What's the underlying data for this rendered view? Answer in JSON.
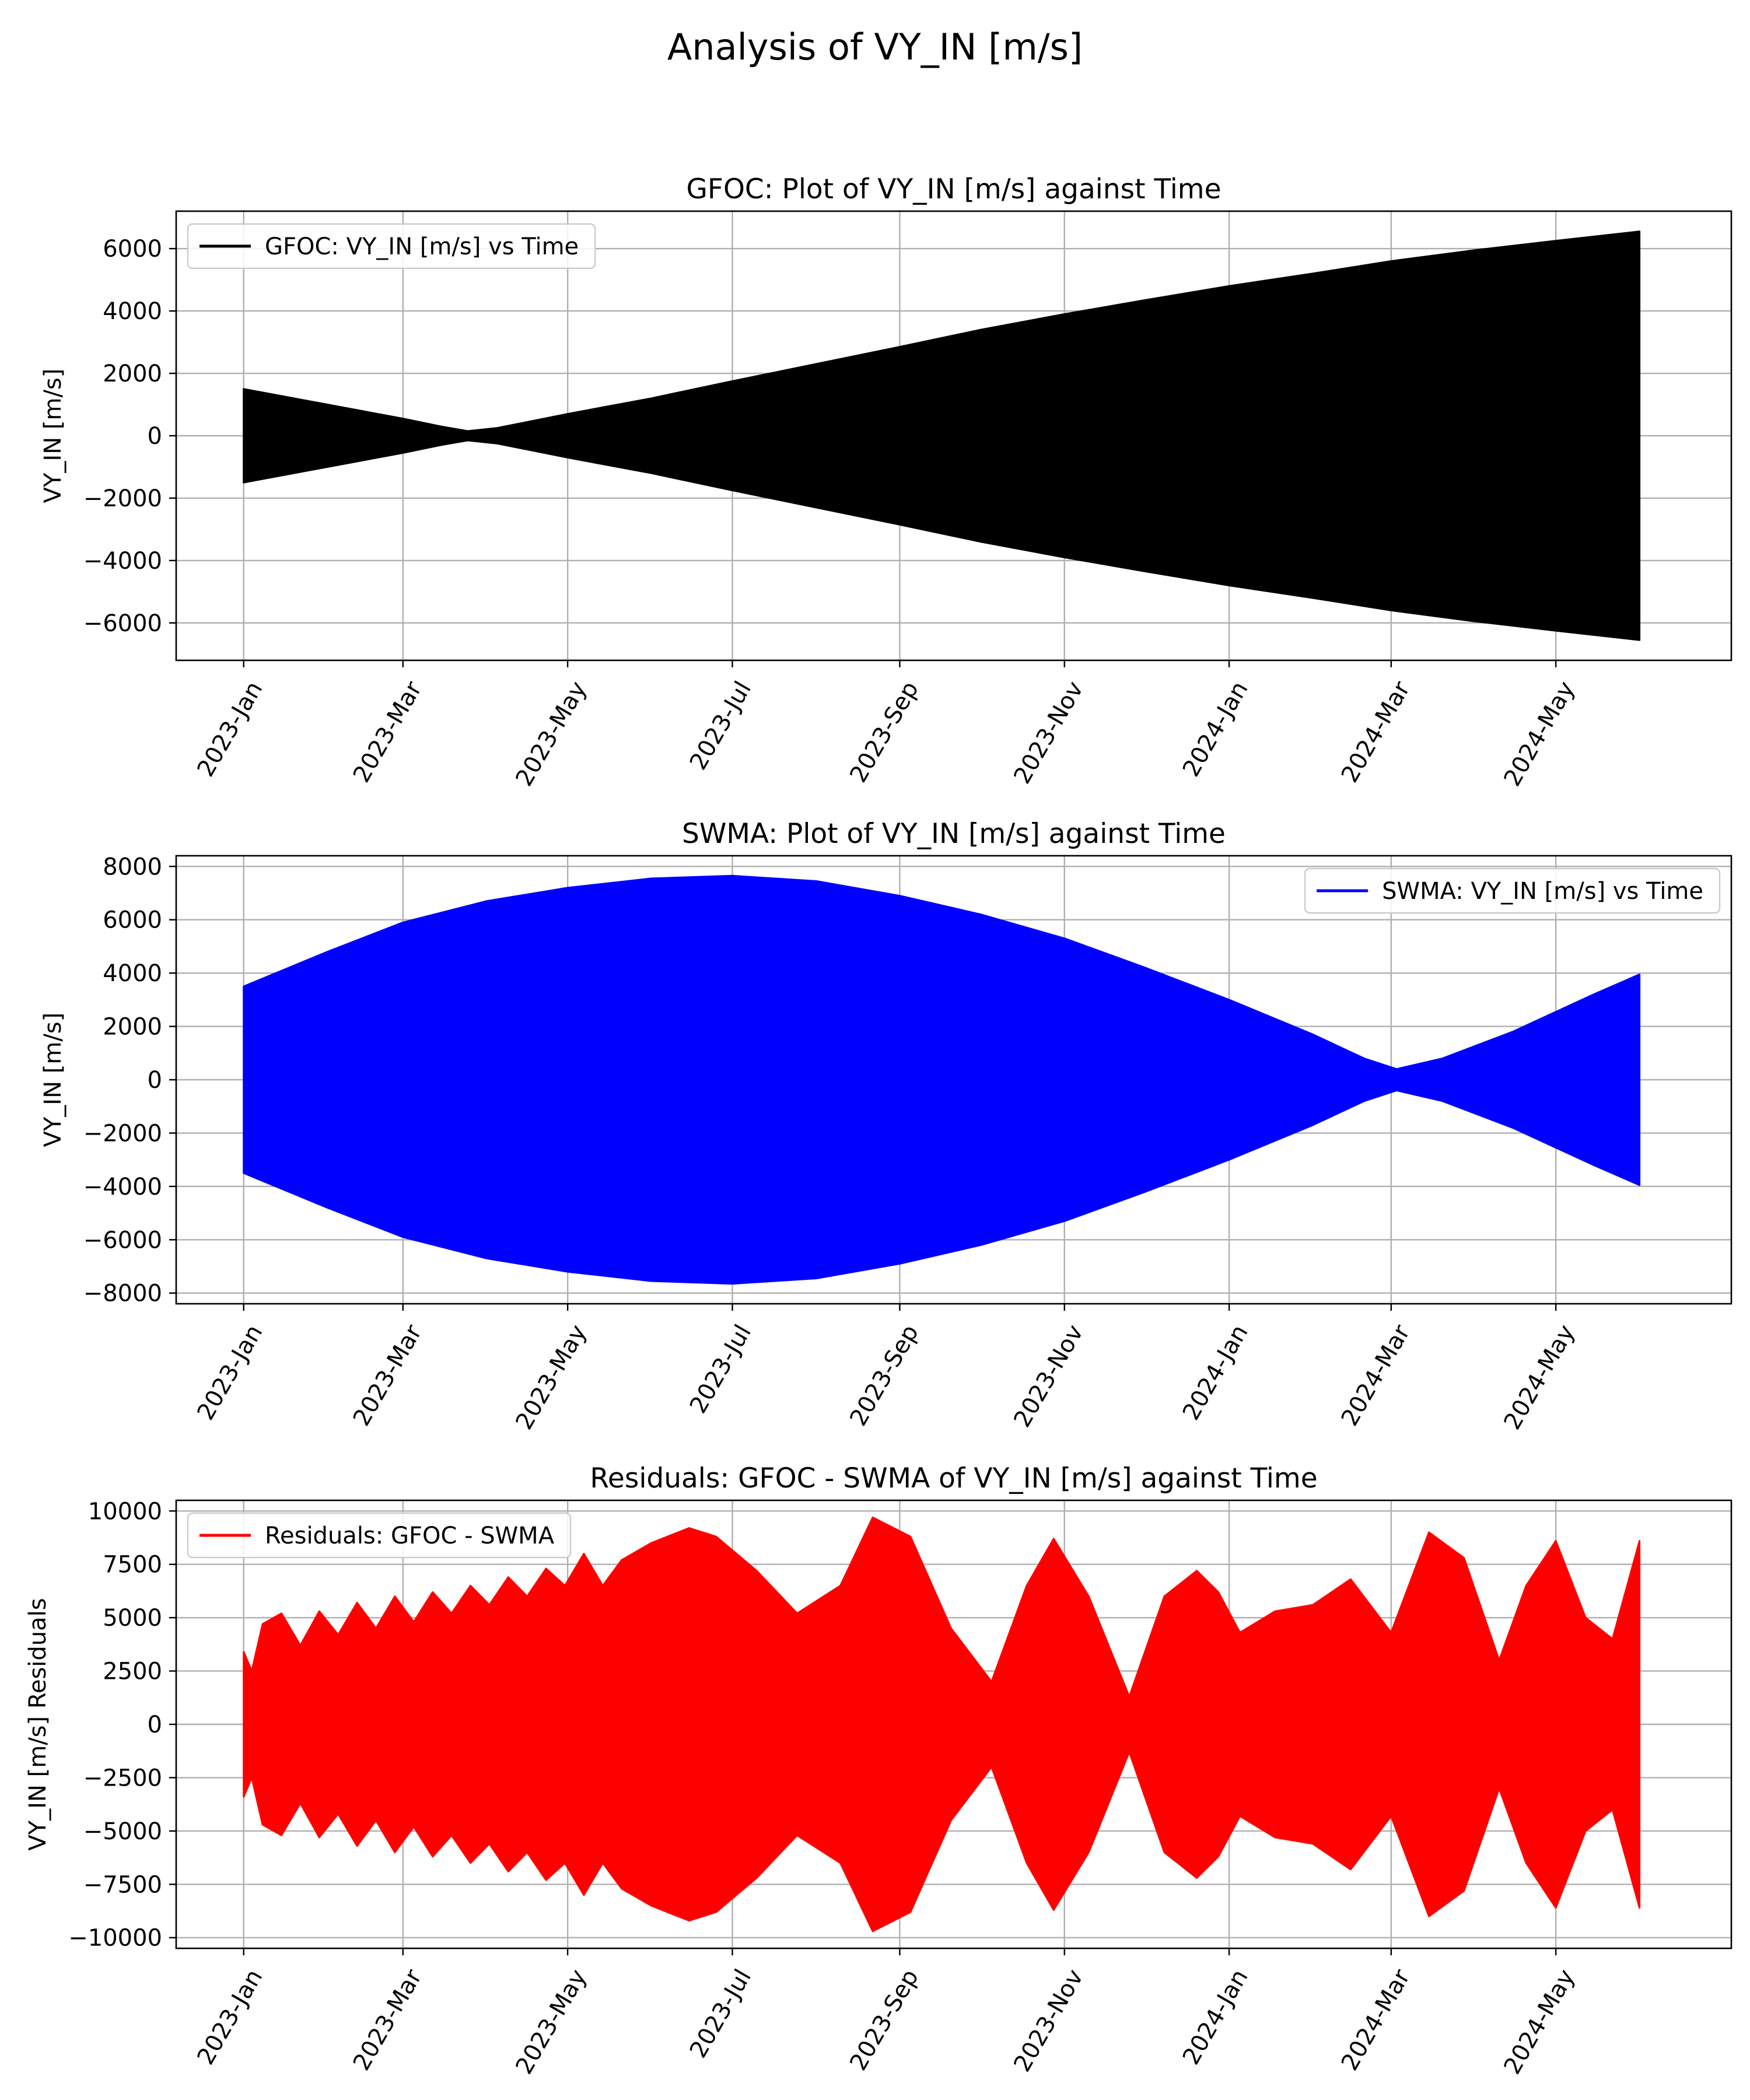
{
  "figure": {
    "suptitle": "Analysis of VY_IN [m/s]"
  },
  "chart_data": [
    {
      "type": "area",
      "title": "GFOC: Plot of VY_IN [m/s] against Time",
      "xlabel": "",
      "ylabel": "VY_IN [m/s]",
      "xlim": [
        "2022-12-07",
        "2024-07-05"
      ],
      "ylim": [
        -7200,
        7200
      ],
      "yticks": [
        -6000,
        -4000,
        -2000,
        0,
        2000,
        4000,
        6000
      ],
      "xticks": [
        "2023-01-01",
        "2023-03-01",
        "2023-05-01",
        "2023-07-01",
        "2023-09-01",
        "2023-11-01",
        "2024-01-01",
        "2024-03-01",
        "2024-05-01"
      ],
      "xtick_labels": [
        "2023-Jan",
        "2023-Mar",
        "2023-May",
        "2023-Jul",
        "2023-Sep",
        "2023-Nov",
        "2024-Jan",
        "2024-Mar",
        "2024-May"
      ],
      "grid": true,
      "legend_position": "upper-left",
      "series": [
        {
          "name": "GFOC: VY_IN [m/s] vs Time",
          "color": "#000000",
          "rendering": "dense oscillation filling symmetric envelope",
          "envelope": {
            "x": [
              "2023-01-01",
              "2023-02-01",
              "2023-03-01",
              "2023-03-15",
              "2023-03-25",
              "2023-04-05",
              "2023-05-01",
              "2023-06-01",
              "2023-07-01",
              "2023-08-01",
              "2023-09-01",
              "2023-10-01",
              "2023-11-01",
              "2023-12-01",
              "2024-01-01",
              "2024-02-01",
              "2024-03-01",
              "2024-04-01",
              "2024-05-01",
              "2024-06-01"
            ],
            "y": [
              1500,
              1000,
              550,
              300,
              150,
              250,
              700,
              1200,
              1750,
              2300,
              2850,
              3400,
              3900,
              4350,
              4800,
              5200,
              5600,
              5950,
              6250,
              6550
            ]
          }
        }
      ]
    },
    {
      "type": "area",
      "title": "SWMA: Plot of VY_IN [m/s] against Time",
      "xlabel": "",
      "ylabel": "VY_IN [m/s]",
      "xlim": [
        "2022-12-07",
        "2024-07-05"
      ],
      "ylim": [
        -8400,
        8400
      ],
      "yticks": [
        -8000,
        -6000,
        -4000,
        -2000,
        0,
        2000,
        4000,
        6000,
        8000
      ],
      "xticks": [
        "2023-01-01",
        "2023-03-01",
        "2023-05-01",
        "2023-07-01",
        "2023-09-01",
        "2023-11-01",
        "2024-01-01",
        "2024-03-01",
        "2024-05-01"
      ],
      "xtick_labels": [
        "2023-Jan",
        "2023-Mar",
        "2023-May",
        "2023-Jul",
        "2023-Sep",
        "2023-Nov",
        "2024-Jan",
        "2024-Mar",
        "2024-May"
      ],
      "grid": true,
      "legend_position": "upper-right",
      "series": [
        {
          "name": "SWMA: VY_IN [m/s] vs Time",
          "color": "#0000ff",
          "rendering": "dense oscillation filling symmetric envelope",
          "envelope": {
            "x": [
              "2023-01-01",
              "2023-02-01",
              "2023-03-01",
              "2023-04-01",
              "2023-05-01",
              "2023-06-01",
              "2023-07-01",
              "2023-08-01",
              "2023-09-01",
              "2023-10-01",
              "2023-11-01",
              "2023-12-01",
              "2024-01-01",
              "2024-02-01",
              "2024-02-20",
              "2024-03-03",
              "2024-03-20",
              "2024-04-15",
              "2024-05-15",
              "2024-06-01"
            ],
            "y": [
              3500,
              4800,
              5900,
              6700,
              7200,
              7550,
              7650,
              7450,
              6900,
              6200,
              5300,
              4200,
              3000,
              1700,
              800,
              400,
              800,
              1800,
              3200,
              3950
            ]
          }
        }
      ]
    },
    {
      "type": "area",
      "title": "Residuals: GFOC - SWMA of VY_IN [m/s] against Time",
      "xlabel": "",
      "ylabel": "VY_IN [m/s] Residuals",
      "xlim": [
        "2022-12-07",
        "2024-07-05"
      ],
      "ylim": [
        -10500,
        10500
      ],
      "yticks": [
        -10000,
        -7500,
        -5000,
        -2500,
        0,
        2500,
        5000,
        7500,
        10000
      ],
      "ytick_labels": [
        "−10000",
        "−7500",
        "−5000",
        "−2500",
        "0",
        "2500",
        "5000",
        "7500",
        "10000"
      ],
      "xticks": [
        "2023-01-01",
        "2023-03-01",
        "2023-05-01",
        "2023-07-01",
        "2023-09-01",
        "2023-11-01",
        "2024-01-01",
        "2024-03-01",
        "2024-05-01"
      ],
      "xtick_labels": [
        "2023-Jan",
        "2023-Mar",
        "2023-May",
        "2023-Jul",
        "2023-Sep",
        "2023-Nov",
        "2024-Jan",
        "2024-Mar",
        "2024-May"
      ],
      "grid": true,
      "legend_position": "upper-left",
      "series": [
        {
          "name": "Residuals: GFOC - SWMA",
          "color": "#ff0000",
          "rendering": "dense oscillation filling symmetric envelope",
          "envelope": {
            "x": [
              "2023-01-01",
              "2023-01-04",
              "2023-01-08",
              "2023-01-15",
              "2023-01-22",
              "2023-01-29",
              "2023-02-05",
              "2023-02-12",
              "2023-02-19",
              "2023-02-26",
              "2023-03-05",
              "2023-03-12",
              "2023-03-19",
              "2023-03-26",
              "2023-04-02",
              "2023-04-09",
              "2023-04-16",
              "2023-04-23",
              "2023-04-30",
              "2023-05-07",
              "2023-05-14",
              "2023-05-21",
              "2023-06-01",
              "2023-06-15",
              "2023-06-25",
              "2023-07-10",
              "2023-07-25",
              "2023-08-10",
              "2023-08-22",
              "2023-09-05",
              "2023-09-20",
              "2023-10-05",
              "2023-10-18",
              "2023-10-28",
              "2023-11-10",
              "2023-11-25",
              "2023-12-08",
              "2023-12-20",
              "2023-12-28",
              "2024-01-05",
              "2024-01-18",
              "2024-02-01",
              "2024-02-15",
              "2024-03-01",
              "2024-03-15",
              "2024-03-28",
              "2024-04-10",
              "2024-04-20",
              "2024-05-01",
              "2024-05-12",
              "2024-05-22",
              "2024-06-01"
            ],
            "y": [
              3400,
              2500,
              4700,
              5200,
              3700,
              5300,
              4200,
              5700,
              4500,
              6000,
              4800,
              6200,
              5200,
              6500,
              5600,
              6900,
              6000,
              7300,
              6500,
              8000,
              6500,
              7700,
              8500,
              9200,
              8800,
              7200,
              5200,
              6500,
              9700,
              8800,
              4500,
              2000,
              6500,
              8700,
              6000,
              1300,
              6000,
              7200,
              6200,
              4300,
              5300,
              5600,
              6800,
              4300,
              9000,
              7800,
              3000,
              6500,
              8600,
              5000,
              4000,
              8600
            ]
          }
        }
      ]
    }
  ]
}
